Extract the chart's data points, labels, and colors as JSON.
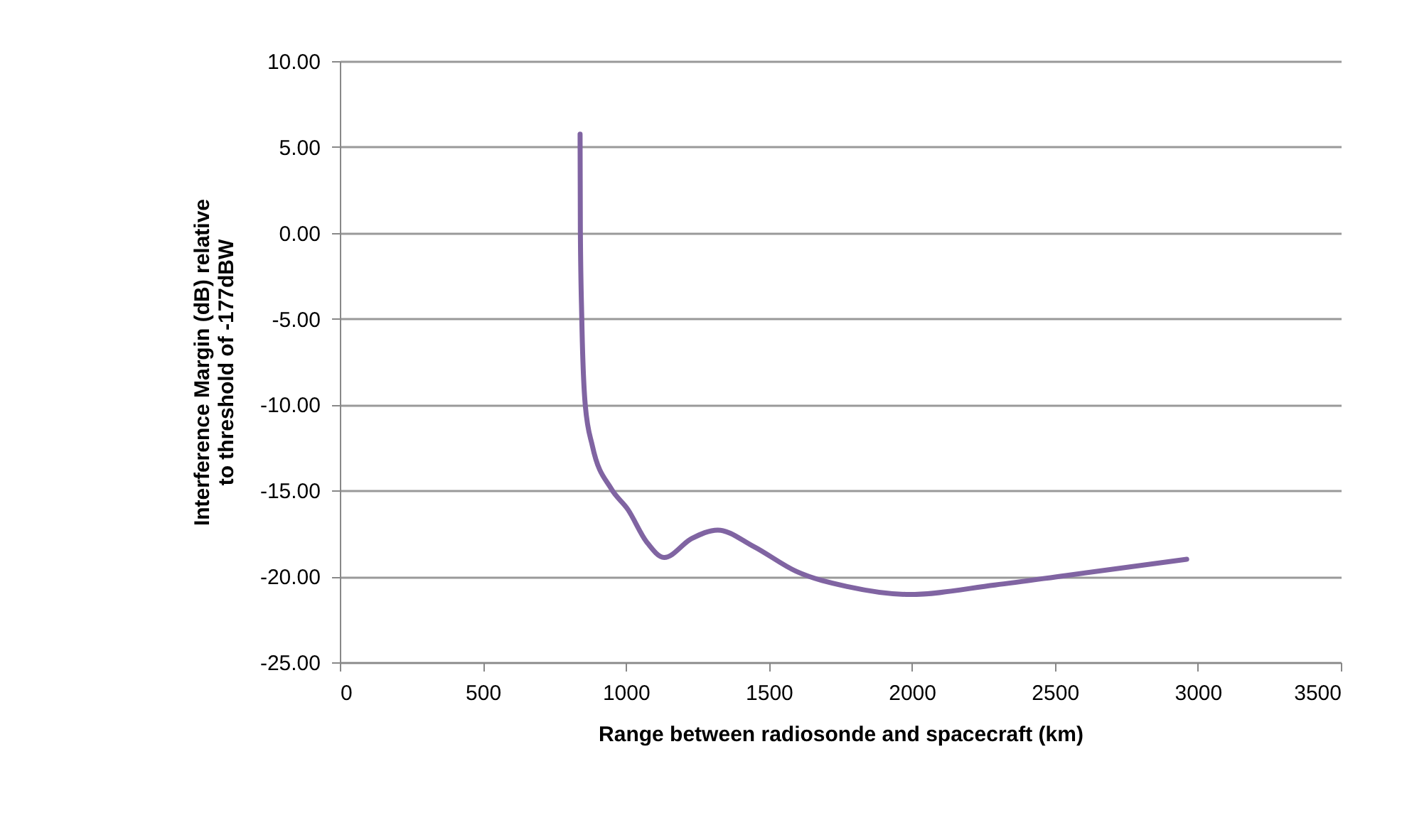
{
  "chart_data": {
    "type": "line",
    "xlabel": "Range between radiosonde and spacecraft (km)",
    "ylabel": "Interference Margin (dB) relative to threshold of -177dBW",
    "x": [
      840,
      841,
      846,
      858,
      883,
      949,
      1007,
      1073,
      1134,
      1230,
      1321,
      1446,
      1595,
      1777,
      1992,
      2290,
      2538,
      2961
    ],
    "series": [
      {
        "color": "#8064a2",
        "values": [
          5.75,
          0.1,
          -5,
          -10,
          -12.4,
          -14.9,
          -16.1,
          -18,
          -18.9,
          -17.8,
          -17.3,
          -18.25,
          -19.7,
          -20.6,
          -21.05,
          -20.5,
          -19.95,
          -19
        ]
      }
    ],
    "xlim": [
      0,
      3500
    ],
    "xticks": [
      0,
      500,
      1000,
      1500,
      2000,
      2500,
      3000,
      3500
    ],
    "ylim": [
      -25,
      10
    ],
    "yticks": [
      {
        "value": -25,
        "label": "-25.00"
      },
      {
        "value": -20,
        "label": "-20.00"
      },
      {
        "value": -15,
        "label": "-15.00"
      },
      {
        "value": -10,
        "label": "-10.00"
      },
      {
        "value": -5,
        "label": "-5.00"
      },
      {
        "value": 0,
        "label": "0.00"
      },
      {
        "value": 5,
        "label": "5.00"
      },
      {
        "value": 10,
        "label": "10.00"
      }
    ],
    "grid": "y",
    "legend": false
  }
}
